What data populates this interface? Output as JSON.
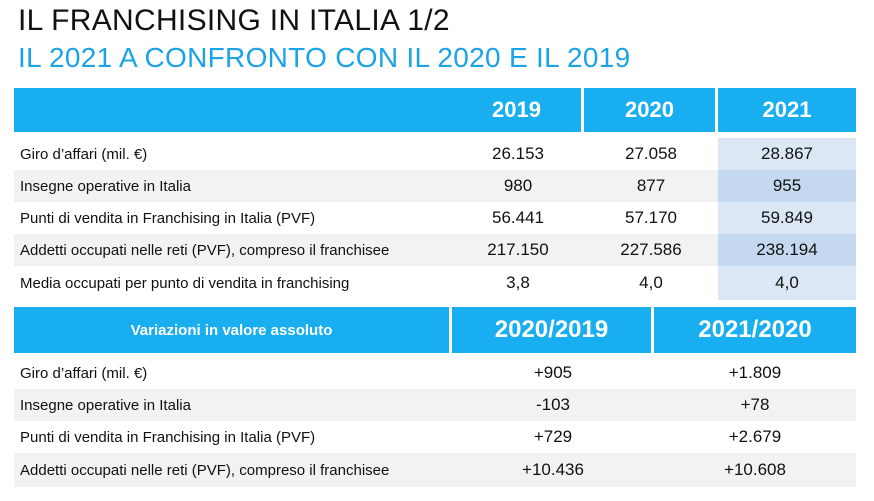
{
  "title": "IL FRANCHISING IN ITALIA 1/2",
  "subtitle": "IL 2021 A CONFRONTO CON IL 2020 E IL 2019",
  "table1": {
    "years": [
      "2019",
      "2020",
      "2021"
    ],
    "rows": [
      {
        "label": "Giro d’affari (mil. €)",
        "values": [
          "26.153",
          "27.058",
          "28.867"
        ]
      },
      {
        "label": "Insegne operative in Italia",
        "values": [
          "980",
          "877",
          "955"
        ]
      },
      {
        "label": "Punti di vendita in Franchising in Italia (PVF)",
        "values": [
          "56.441",
          "57.170",
          "59.849"
        ]
      },
      {
        "label": "Addetti occupati nelle reti (PVF), compreso il franchisee",
        "values": [
          "217.150",
          "227.586",
          "238.194"
        ]
      },
      {
        "label": "Media occupati per punto di vendita in franchising",
        "values": [
          "3,8",
          "4,0",
          "4,0"
        ]
      }
    ]
  },
  "table2": {
    "header_label": "Variazioni in valore assoluto",
    "periods": [
      "2020/2019",
      "2021/2020"
    ],
    "rows": [
      {
        "label": "Giro d’affari (mil. €)",
        "values": [
          "+905",
          "+1.809"
        ]
      },
      {
        "label": "Insegne operative in Italia",
        "values": [
          "-103",
          "+78"
        ]
      },
      {
        "label": "Punti di vendita in Franchising in Italia (PVF)",
        "values": [
          "+729",
          "+2.679"
        ]
      },
      {
        "label": "Addetti occupati nelle reti (PVF), compreso il franchisee",
        "values": [
          "+10.436",
          "+10.608"
        ]
      }
    ]
  }
}
